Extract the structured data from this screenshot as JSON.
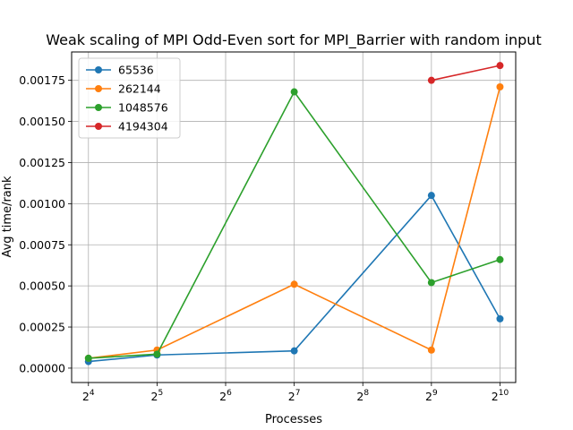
{
  "chart_data": {
    "type": "line",
    "title": "Weak scaling of MPI Odd-Even sort for MPI_Barrier with random input",
    "xlabel": "Processes",
    "ylabel": "Avg time/rank",
    "xscale": "log2",
    "xlim": [
      13.5,
      1200
    ],
    "ylim": [
      -8.75e-05,
      0.0019225
    ],
    "grid": true,
    "legend_position": "upper-left",
    "x_ticks": [
      {
        "value": 16,
        "base": "2",
        "exp": "4"
      },
      {
        "value": 32,
        "base": "2",
        "exp": "5"
      },
      {
        "value": 64,
        "base": "2",
        "exp": "6"
      },
      {
        "value": 128,
        "base": "2",
        "exp": "7"
      },
      {
        "value": 256,
        "base": "2",
        "exp": "8"
      },
      {
        "value": 512,
        "base": "2",
        "exp": "9"
      },
      {
        "value": 1024,
        "base": "2",
        "exp": "10"
      }
    ],
    "y_ticks": [
      {
        "value": 0.0,
        "label": "0.00000"
      },
      {
        "value": 0.00025,
        "label": "0.00025"
      },
      {
        "value": 0.0005,
        "label": "0.00050"
      },
      {
        "value": 0.00075,
        "label": "0.00075"
      },
      {
        "value": 0.001,
        "label": "0.00100"
      },
      {
        "value": 0.00125,
        "label": "0.00125"
      },
      {
        "value": 0.0015,
        "label": "0.00150"
      },
      {
        "value": 0.00175,
        "label": "0.00175"
      }
    ],
    "series": [
      {
        "name": "65536",
        "color": "#1f77b4",
        "points": [
          [
            16,
            4e-05
          ],
          [
            32,
            8e-05
          ],
          [
            128,
            0.000105
          ],
          [
            512,
            0.00105
          ],
          [
            1024,
            0.0003
          ]
        ]
      },
      {
        "name": "262144",
        "color": "#ff7f0e",
        "points": [
          [
            16,
            6e-05
          ],
          [
            32,
            0.00011
          ],
          [
            128,
            0.00051
          ],
          [
            512,
            0.00011
          ],
          [
            1024,
            0.00171
          ]
        ]
      },
      {
        "name": "1048576",
        "color": "#2ca02c",
        "points": [
          [
            16,
            6e-05
          ],
          [
            32,
            8.5e-05
          ],
          [
            128,
            0.00168
          ],
          [
            512,
            0.00052
          ],
          [
            1024,
            0.00066
          ]
        ]
      },
      {
        "name": "4194304",
        "color": "#d62728",
        "points": [
          [
            512,
            0.00175
          ],
          [
            1024,
            0.00184
          ]
        ]
      }
    ]
  }
}
